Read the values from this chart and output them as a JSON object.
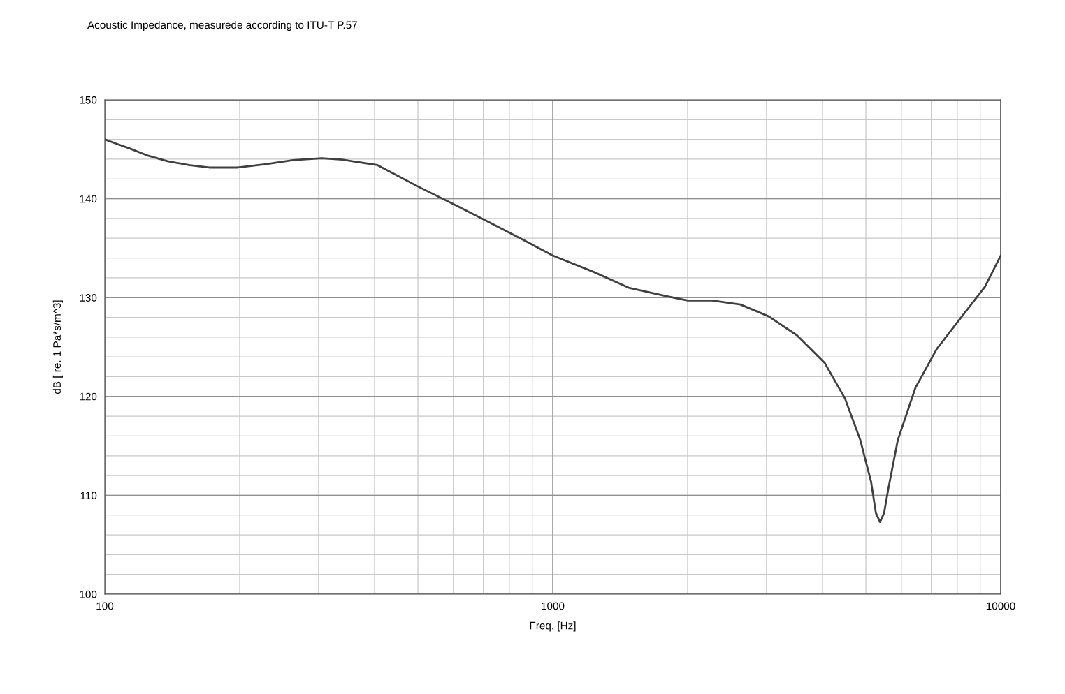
{
  "chart_data": {
    "type": "line",
    "title": "Acoustic Impedance, measurede according to ITU-T P.57",
    "xlabel": "Freq. [Hz]",
    "ylabel": "dB [ re. 1 Pa*s/m^3]",
    "log": "x",
    "grid": true,
    "marker": "none",
    "line_style": "solid",
    "xlim": [
      100,
      10000
    ],
    "xticks": [
      100,
      {
        "value": 200,
        "label": null
      },
      {
        "value": 300,
        "label": null
      },
      {
        "value": 400,
        "label": null
      },
      {
        "value": 500,
        "label": null
      },
      {
        "value": 600,
        "label": null
      },
      {
        "value": 700,
        "label": null
      },
      {
        "value": 800,
        "label": null
      },
      {
        "value": 900,
        "label": null
      },
      1000,
      {
        "value": 2000,
        "label": null
      },
      {
        "value": 3000,
        "label": null
      },
      {
        "value": 4000,
        "label": null
      },
      {
        "value": 5000,
        "label": null
      },
      {
        "value": 6000,
        "label": null
      },
      {
        "value": 7000,
        "label": null
      },
      {
        "value": 8000,
        "label": null
      },
      {
        "value": 9000,
        "label": null
      },
      10000
    ],
    "ylim": [
      100,
      150
    ],
    "yticks": [
      100,
      {
        "value": 102,
        "label": null
      },
      {
        "value": 104,
        "label": null
      },
      {
        "value": 106,
        "label": null
      },
      {
        "value": 108,
        "label": null
      },
      110,
      {
        "value": 112,
        "label": null
      },
      {
        "value": 114,
        "label": null
      },
      {
        "value": 116,
        "label": null
      },
      {
        "value": 118,
        "label": null
      },
      120,
      {
        "value": 122,
        "label": null
      },
      {
        "value": 124,
        "label": null
      },
      {
        "value": 126,
        "label": null
      },
      {
        "value": 128,
        "label": null
      },
      130,
      {
        "value": 132,
        "label": null
      },
      {
        "value": 134,
        "label": null
      },
      {
        "value": 136,
        "label": null
      },
      {
        "value": 138,
        "label": null
      },
      140,
      {
        "value": 142,
        "label": null
      },
      {
        "value": 144,
        "label": null
      },
      {
        "value": 146,
        "label": null
      },
      {
        "value": 148,
        "label": null
      },
      150
    ],
    "series": [
      {
        "color": "#404040",
        "x": [
          100,
          105.5,
          113.4,
          124,
          138,
          154,
          171,
          198,
          229,
          263,
          305,
          339,
          406,
          502,
          603,
          722,
          862,
          1000,
          1233,
          1477,
          1770,
          2000,
          2268,
          2624,
          3034,
          3505,
          4045,
          4490,
          4858,
          5134,
          5265,
          5378,
          5490,
          5614,
          5893,
          6454,
          7198,
          8001,
          9224,
          10000
        ],
        "values": [
          146.0,
          145.6,
          145.1,
          144.4,
          143.8,
          143.4,
          143.15,
          143.15,
          143.5,
          143.9,
          144.1,
          143.95,
          143.4,
          141.2,
          139.4,
          137.6,
          135.8,
          134.25,
          132.6,
          131.0,
          130.2,
          129.7,
          129.7,
          129.3,
          128.1,
          126.2,
          123.4,
          119.8,
          115.6,
          111.4,
          108.2,
          107.3,
          108.2,
          110.7,
          115.6,
          120.9,
          124.8,
          127.5,
          131.1,
          134.25
        ]
      }
    ]
  }
}
